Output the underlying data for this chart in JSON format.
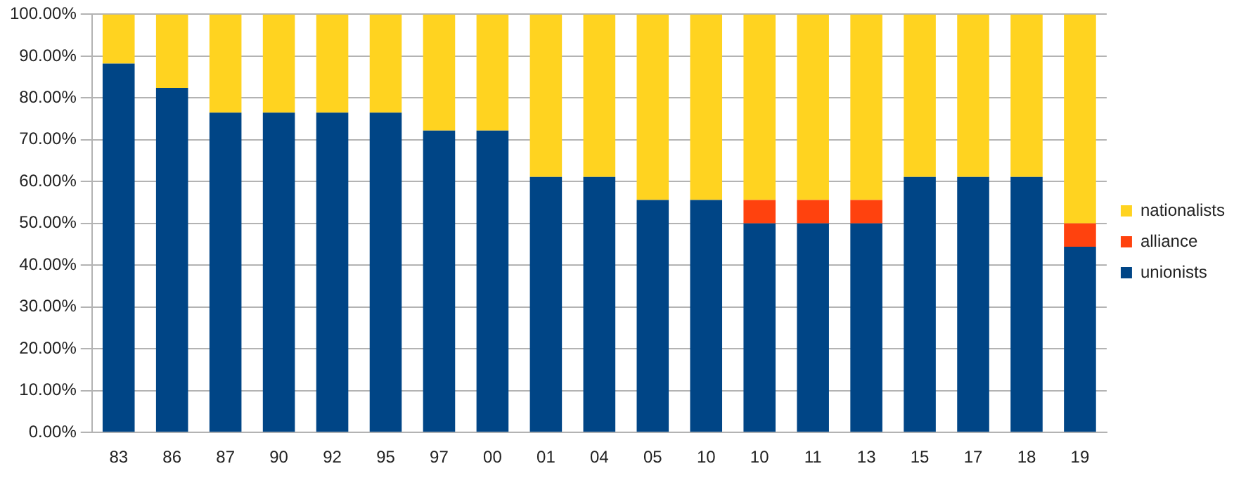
{
  "chart_data": {
    "type": "bar",
    "stacked": true,
    "categories": [
      "83",
      "86",
      "87",
      "90",
      "92",
      "95",
      "97",
      "00",
      "01",
      "04",
      "05",
      "10",
      "10",
      "11",
      "13",
      "15",
      "17",
      "18",
      "19"
    ],
    "series": [
      {
        "name": "unionists",
        "color": "#004586",
        "values": [
          88.2,
          82.4,
          76.5,
          76.5,
          76.5,
          76.5,
          72.2,
          72.2,
          61.1,
          61.1,
          55.6,
          55.6,
          50,
          50,
          50,
          61.1,
          61.1,
          61.1,
          44.4
        ]
      },
      {
        "name": "alliance",
        "color": "#ff420e",
        "values": [
          0,
          0,
          0,
          0,
          0,
          0,
          0,
          0,
          0,
          0,
          0,
          0,
          5.6,
          5.6,
          5.6,
          0,
          0,
          0,
          5.6
        ]
      },
      {
        "name": "nationalists",
        "color": "#ffd320",
        "values": [
          11.8,
          17.6,
          23.5,
          23.5,
          23.5,
          23.5,
          27.8,
          27.8,
          38.9,
          38.9,
          44.4,
          44.4,
          44.4,
          44.4,
          44.4,
          38.9,
          38.9,
          38.9,
          50
        ]
      }
    ],
    "ylim": [
      0,
      100
    ],
    "yticks": [
      {
        "value": 0,
        "label": "0.00%"
      },
      {
        "value": 10,
        "label": "10.00%"
      },
      {
        "value": 20,
        "label": "20.00%"
      },
      {
        "value": 30,
        "label": "30.00%"
      },
      {
        "value": 40,
        "label": "40.00%"
      },
      {
        "value": 50,
        "label": "50.00%"
      },
      {
        "value": 60,
        "label": "60.00%"
      },
      {
        "value": 70,
        "label": "70.00%"
      },
      {
        "value": 80,
        "label": "80.00%"
      },
      {
        "value": 90,
        "label": "90.00%"
      },
      {
        "value": 100,
        "label": "100.00%"
      }
    ],
    "grid": "y",
    "legend": "right"
  }
}
